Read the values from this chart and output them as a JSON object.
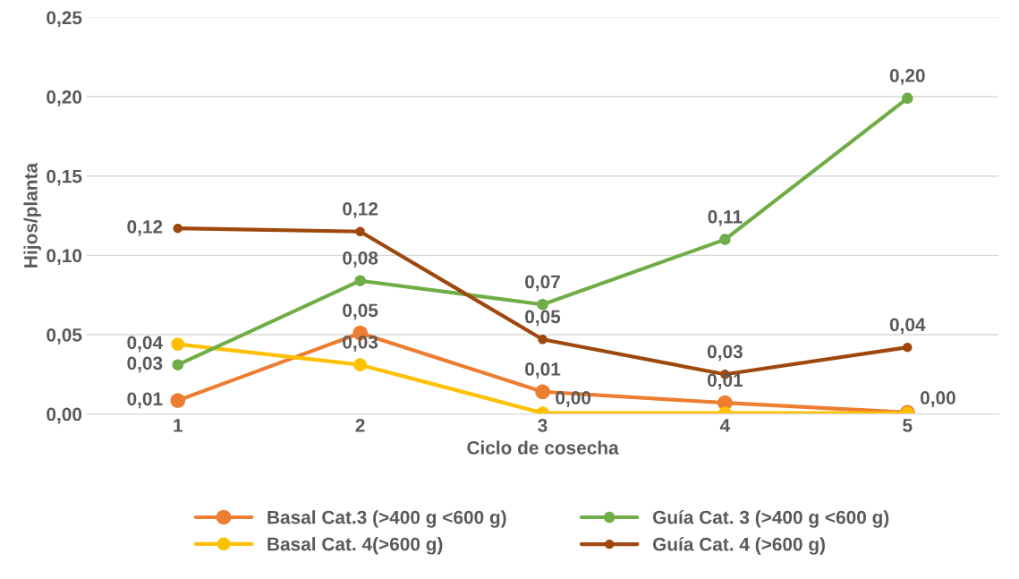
{
  "chart_data": {
    "type": "line",
    "xlabel": "Ciclo de cosecha",
    "ylabel": "Hijos/planta",
    "categories": [
      "1",
      "2",
      "3",
      "4",
      "5"
    ],
    "series": [
      {
        "name": "Basal Cat.3 (>400 g <600 g)",
        "color": "#ed7d31",
        "values": [
          0.0085,
          0.051,
          0.014,
          0.007,
          0.001
        ],
        "value_labels": [
          "0,01",
          "0,05",
          "0,01",
          "0,01",
          null
        ]
      },
      {
        "name": "Basal Cat. 4(>600 g)",
        "color": "#ffc000",
        "values": [
          0.044,
          0.031,
          0.0006,
          0.0006,
          0.0006
        ],
        "value_labels": [
          "0,04",
          "0,03",
          "0,00",
          null,
          "0,00"
        ]
      },
      {
        "name": "Guía Cat. 3 (>400 g <600 g)",
        "color": "#70ad47",
        "values": [
          0.031,
          0.084,
          0.069,
          0.11,
          0.199
        ],
        "value_labels": [
          "0,03",
          "0,08",
          "0,07",
          "0,11",
          "0,20"
        ]
      },
      {
        "name": "Guía Cat. 4 (>600 g)",
        "color": "#9e480e",
        "values": [
          0.117,
          0.115,
          0.047,
          0.025,
          0.042
        ],
        "value_labels": [
          "0,12",
          "0,12",
          "0,05",
          "0,03",
          "0,04"
        ]
      }
    ],
    "ylim": [
      0,
      0.25
    ],
    "yticks": [
      {
        "value": 0,
        "label": "0,00"
      },
      {
        "value": 0.05,
        "label": "0,05"
      },
      {
        "value": 0.1,
        "label": "0,10"
      },
      {
        "value": 0.15,
        "label": "0,15"
      },
      {
        "value": 0.2,
        "label": "0,20"
      },
      {
        "value": 0.25,
        "label": "0,25"
      }
    ],
    "grid": "y",
    "legend": "bottom",
    "marker": "circle",
    "line_style": "solid"
  }
}
